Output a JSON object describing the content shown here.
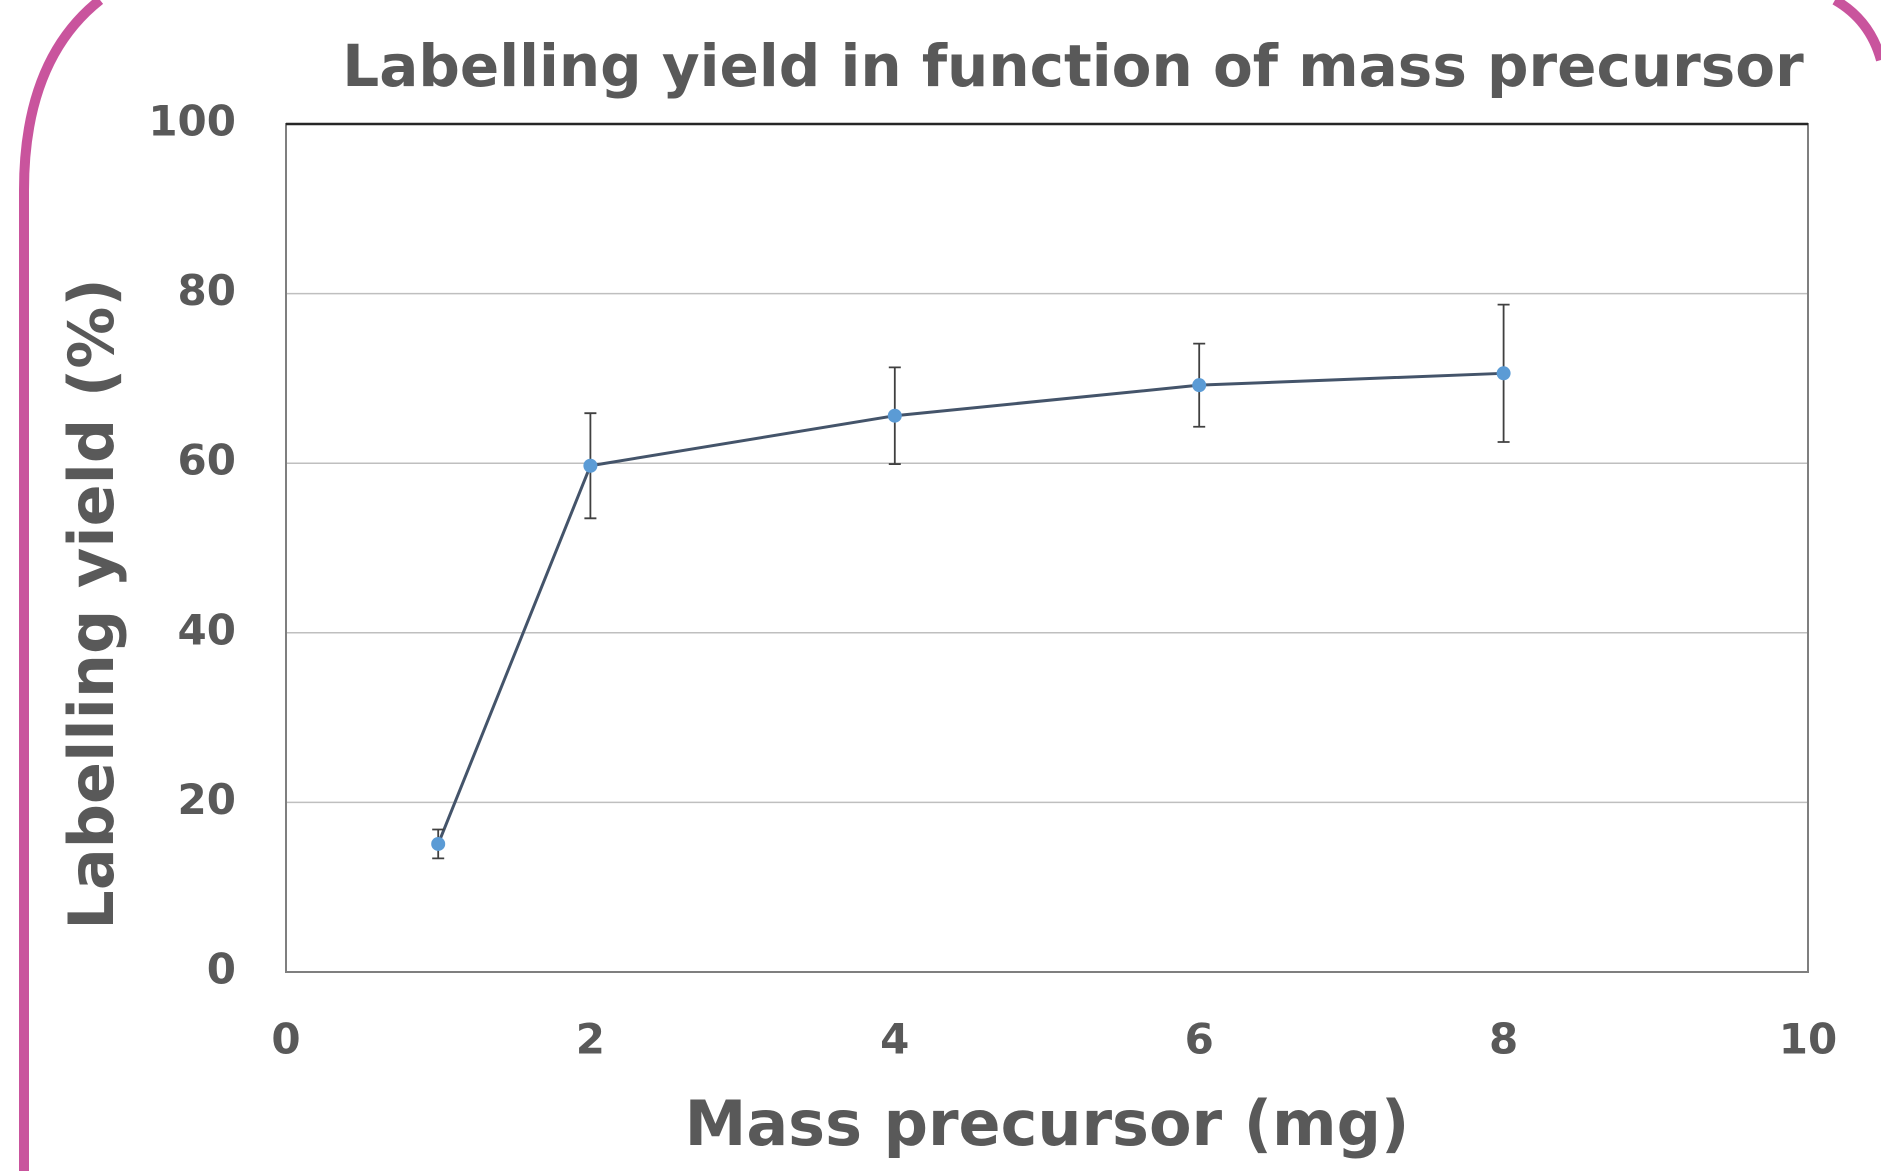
{
  "chart_data": {
    "type": "line",
    "title": "Labelling yield in function of mass precursor",
    "x_label": "Mass precursor (mg)",
    "y_label": "Labelling yield (%)",
    "series": [
      {
        "color": "#44546a",
        "marker_color": "#5b9bd5",
        "x": [
          1,
          2,
          4,
          6,
          8
        ],
        "values": [
          15.1,
          59.7,
          65.6,
          69.2,
          70.6
        ],
        "errors": [
          1.7,
          6.2,
          5.7,
          4.9,
          8.1
        ]
      }
    ],
    "xlim": [
      0,
      10
    ],
    "xticks": [
      0,
      2,
      4,
      6,
      8,
      10
    ],
    "ylim": [
      0,
      100
    ],
    "yticks": [
      0,
      20,
      40,
      60,
      80,
      100
    ],
    "grid": true
  }
}
